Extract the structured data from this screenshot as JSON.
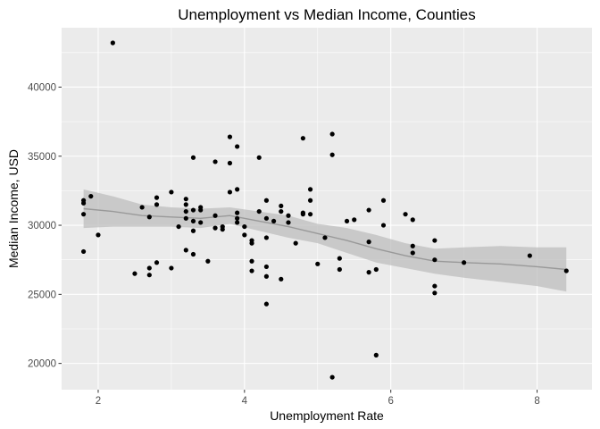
{
  "chart_data": {
    "type": "scatter",
    "title": "Unemployment vs Median Income, Counties",
    "xlabel": "Unemployment Rate",
    "ylabel": "Median Income, USD",
    "xlim": [
      1.5,
      8.75
    ],
    "ylim": [
      18100,
      44300
    ],
    "x_ticks": [
      2,
      4,
      6,
      8
    ],
    "x_tick_labels": [
      "2",
      "4",
      "6",
      "8"
    ],
    "y_ticks": [
      20000,
      25000,
      30000,
      35000,
      40000
    ],
    "y_tick_labels": [
      "20000",
      "25000",
      "30000",
      "35000",
      "40000"
    ],
    "grid": true,
    "legend": "none",
    "points": [
      {
        "x": 1.8,
        "y": 28100
      },
      {
        "x": 1.8,
        "y": 30800
      },
      {
        "x": 1.8,
        "y": 31600
      },
      {
        "x": 1.8,
        "y": 31800
      },
      {
        "x": 1.9,
        "y": 32100
      },
      {
        "x": 2.0,
        "y": 29300
      },
      {
        "x": 2.2,
        "y": 43200
      },
      {
        "x": 2.5,
        "y": 26500
      },
      {
        "x": 2.6,
        "y": 31300
      },
      {
        "x": 2.7,
        "y": 30600
      },
      {
        "x": 2.7,
        "y": 26900
      },
      {
        "x": 2.7,
        "y": 26400
      },
      {
        "x": 2.8,
        "y": 31500
      },
      {
        "x": 2.8,
        "y": 32000
      },
      {
        "x": 2.8,
        "y": 27300
      },
      {
        "x": 3.0,
        "y": 32400
      },
      {
        "x": 3.0,
        "y": 26900
      },
      {
        "x": 3.1,
        "y": 29900
      },
      {
        "x": 3.2,
        "y": 31900
      },
      {
        "x": 3.2,
        "y": 31500
      },
      {
        "x": 3.2,
        "y": 31000
      },
      {
        "x": 3.2,
        "y": 30500
      },
      {
        "x": 3.2,
        "y": 28200
      },
      {
        "x": 3.3,
        "y": 34900
      },
      {
        "x": 3.3,
        "y": 31100
      },
      {
        "x": 3.3,
        "y": 30300
      },
      {
        "x": 3.3,
        "y": 29600
      },
      {
        "x": 3.3,
        "y": 27900
      },
      {
        "x": 3.4,
        "y": 31300
      },
      {
        "x": 3.4,
        "y": 31100
      },
      {
        "x": 3.4,
        "y": 30200
      },
      {
        "x": 3.5,
        "y": 27400
      },
      {
        "x": 3.6,
        "y": 34600
      },
      {
        "x": 3.6,
        "y": 30700
      },
      {
        "x": 3.6,
        "y": 29800
      },
      {
        "x": 3.7,
        "y": 29900
      },
      {
        "x": 3.7,
        "y": 29700
      },
      {
        "x": 3.8,
        "y": 36400
      },
      {
        "x": 3.8,
        "y": 34500
      },
      {
        "x": 3.8,
        "y": 32400
      },
      {
        "x": 3.9,
        "y": 35700
      },
      {
        "x": 3.9,
        "y": 32600
      },
      {
        "x": 3.9,
        "y": 30900
      },
      {
        "x": 3.9,
        "y": 30500
      },
      {
        "x": 3.9,
        "y": 30200
      },
      {
        "x": 4.0,
        "y": 29900
      },
      {
        "x": 4.0,
        "y": 29300
      },
      {
        "x": 4.1,
        "y": 28900
      },
      {
        "x": 4.1,
        "y": 28700
      },
      {
        "x": 4.1,
        "y": 27400
      },
      {
        "x": 4.1,
        "y": 26700
      },
      {
        "x": 4.2,
        "y": 34900
      },
      {
        "x": 4.2,
        "y": 31000
      },
      {
        "x": 4.3,
        "y": 31800
      },
      {
        "x": 4.3,
        "y": 30500
      },
      {
        "x": 4.3,
        "y": 29100
      },
      {
        "x": 4.3,
        "y": 27000
      },
      {
        "x": 4.3,
        "y": 26300
      },
      {
        "x": 4.3,
        "y": 24300
      },
      {
        "x": 4.4,
        "y": 30300
      },
      {
        "x": 4.5,
        "y": 31400
      },
      {
        "x": 4.5,
        "y": 31000
      },
      {
        "x": 4.5,
        "y": 26100
      },
      {
        "x": 4.6,
        "y": 30700
      },
      {
        "x": 4.6,
        "y": 30200
      },
      {
        "x": 4.7,
        "y": 28700
      },
      {
        "x": 4.8,
        "y": 36300
      },
      {
        "x": 4.8,
        "y": 30800
      },
      {
        "x": 4.8,
        "y": 30900
      },
      {
        "x": 4.9,
        "y": 32600
      },
      {
        "x": 4.9,
        "y": 31800
      },
      {
        "x": 4.9,
        "y": 30800
      },
      {
        "x": 5.0,
        "y": 27200
      },
      {
        "x": 5.1,
        "y": 29100
      },
      {
        "x": 5.2,
        "y": 36600
      },
      {
        "x": 5.2,
        "y": 35100
      },
      {
        "x": 5.2,
        "y": 19000
      },
      {
        "x": 5.3,
        "y": 27600
      },
      {
        "x": 5.3,
        "y": 26800
      },
      {
        "x": 5.4,
        "y": 30300
      },
      {
        "x": 5.5,
        "y": 30400
      },
      {
        "x": 5.7,
        "y": 31100
      },
      {
        "x": 5.7,
        "y": 28800
      },
      {
        "x": 5.7,
        "y": 26600
      },
      {
        "x": 5.8,
        "y": 26800
      },
      {
        "x": 5.8,
        "y": 20600
      },
      {
        "x": 5.9,
        "y": 31800
      },
      {
        "x": 5.9,
        "y": 30000
      },
      {
        "x": 6.2,
        "y": 30800
      },
      {
        "x": 6.3,
        "y": 30400
      },
      {
        "x": 6.3,
        "y": 28500
      },
      {
        "x": 6.3,
        "y": 28000
      },
      {
        "x": 6.6,
        "y": 28900
      },
      {
        "x": 6.6,
        "y": 27500
      },
      {
        "x": 6.6,
        "y": 25600
      },
      {
        "x": 6.6,
        "y": 25100
      },
      {
        "x": 7.0,
        "y": 27300
      },
      {
        "x": 7.9,
        "y": 27800
      },
      {
        "x": 8.4,
        "y": 26700
      }
    ],
    "smooth": {
      "method": "loess",
      "line_color": "#999999",
      "band_color": "#bdbdbd",
      "x": [
        1.8,
        2.2,
        2.6,
        3.0,
        3.4,
        3.8,
        4.2,
        4.6,
        5.0,
        5.4,
        5.8,
        6.2,
        6.6,
        7.0,
        7.5,
        8.0,
        8.4
      ],
      "y": [
        31200,
        31000,
        30700,
        30600,
        30500,
        30700,
        30300,
        29900,
        29400,
        28900,
        28300,
        27800,
        27400,
        27300,
        27200,
        27000,
        26800
      ],
      "lower": [
        29800,
        29900,
        29900,
        29900,
        29800,
        30100,
        29600,
        29100,
        28700,
        28000,
        27300,
        26900,
        26500,
        26200,
        25900,
        25600,
        25200
      ],
      "upper": [
        32600,
        32100,
        31500,
        31300,
        31200,
        31300,
        31000,
        30700,
        30100,
        29800,
        29300,
        28700,
        28300,
        28400,
        28500,
        28400,
        28400
      ]
    },
    "colors": {
      "panel_background": "#ebebeb",
      "grid_major": "#ffffff",
      "point": "#000000"
    }
  }
}
